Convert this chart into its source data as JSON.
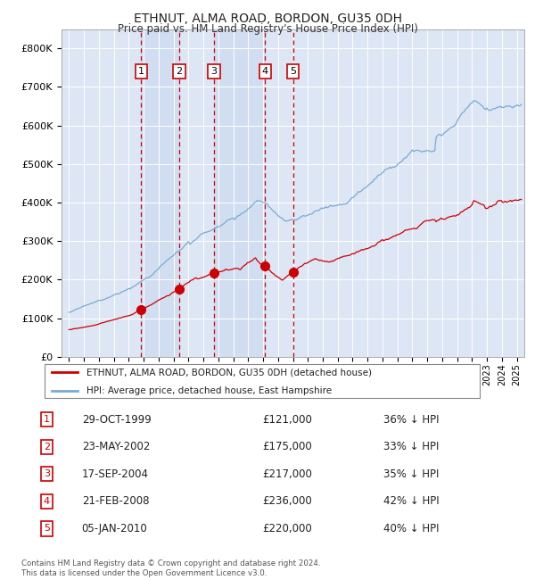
{
  "title": "ETHNUT, ALMA ROAD, BORDON, GU35 0DH",
  "subtitle": "Price paid vs. HM Land Registry's House Price Index (HPI)",
  "footer": "Contains HM Land Registry data © Crown copyright and database right 2024.\nThis data is licensed under the Open Government Licence v3.0.",
  "legend_red": "ETHNUT, ALMA ROAD, BORDON, GU35 0DH (detached house)",
  "legend_blue": "HPI: Average price, detached house, East Hampshire",
  "transactions": [
    {
      "id": 1,
      "date": "29-OCT-1999",
      "price": 121000,
      "pct": "36% ↓ HPI",
      "year": 1999.83
    },
    {
      "id": 2,
      "date": "23-MAY-2002",
      "price": 175000,
      "pct": "33% ↓ HPI",
      "year": 2002.39
    },
    {
      "id": 3,
      "date": "17-SEP-2004",
      "price": 217000,
      "pct": "35% ↓ HPI",
      "year": 2004.71
    },
    {
      "id": 4,
      "date": "21-FEB-2008",
      "price": 236000,
      "pct": "42% ↓ HPI",
      "year": 2008.14
    },
    {
      "id": 5,
      "date": "05-JAN-2010",
      "price": 220000,
      "pct": "40% ↓ HPI",
      "year": 2010.01
    }
  ],
  "ylim": [
    0,
    850000
  ],
  "xlim": [
    1994.5,
    2025.5
  ],
  "bg_color": "#dce6f5",
  "grid_color": "#ffffff",
  "red_color": "#cc0000",
  "blue_color": "#7aabcf",
  "shade_color": "#c8d8ee"
}
